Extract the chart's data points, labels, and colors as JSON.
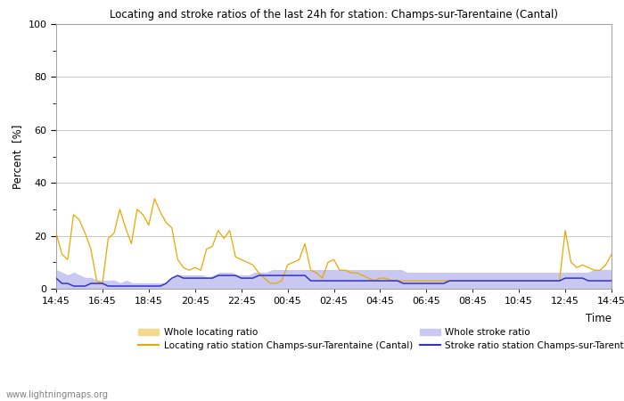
{
  "title": "Locating and stroke ratios of the last 24h for station: Champs-sur-Tarentaine (Cantal)",
  "xlabel": "Time",
  "ylabel": "Percent  [%]",
  "ylim": [
    0,
    100
  ],
  "yticks": [
    0,
    20,
    40,
    60,
    80,
    100
  ],
  "xtick_labels": [
    "14:45",
    "16:45",
    "18:45",
    "20:45",
    "22:45",
    "00:45",
    "02:45",
    "04:45",
    "06:45",
    "08:45",
    "10:45",
    "12:45",
    "14:45"
  ],
  "watermark": "www.lightningmaps.org",
  "whole_locating_color": "#f5d78e",
  "whole_stroke_color": "#c8c8f0",
  "locating_line_color": "#e8a800",
  "stroke_line_color": "#3333cc",
  "whole_locating": [
    2,
    1.5,
    1,
    1,
    1,
    1,
    1,
    1,
    2,
    1,
    1,
    1,
    1,
    1,
    1,
    1,
    1,
    1,
    1,
    1,
    1,
    1,
    1,
    1,
    1,
    1,
    1,
    1,
    1,
    1,
    1,
    1,
    1,
    1,
    1,
    1,
    1,
    1,
    1,
    1,
    1,
    1,
    1,
    1,
    1,
    1,
    1,
    1,
    1,
    1,
    1,
    1,
    1,
    1,
    1,
    1,
    1,
    1,
    1,
    1,
    1,
    1,
    1,
    1,
    1,
    1,
    1,
    1,
    1,
    1,
    1,
    1,
    1,
    1,
    1,
    1,
    1,
    1,
    1,
    1,
    1,
    1,
    1,
    1,
    1,
    1,
    1,
    1,
    1,
    1,
    1,
    1,
    1,
    1,
    1,
    1
  ],
  "whole_stroke": [
    7,
    6,
    5,
    6,
    5,
    4,
    4,
    3,
    3,
    3,
    3,
    2,
    3,
    2,
    2,
    2,
    2,
    2,
    2,
    2,
    4,
    5,
    5,
    5,
    5,
    5,
    4,
    5,
    6,
    6,
    6,
    5,
    5,
    5,
    6,
    6,
    6,
    7,
    7,
    7,
    7,
    7,
    7,
    7,
    7,
    7,
    7,
    7,
    7,
    7,
    7,
    7,
    7,
    7,
    7,
    7,
    7,
    7,
    7,
    7,
    6,
    6,
    6,
    6,
    6,
    6,
    6,
    6,
    6,
    6,
    6,
    6,
    6,
    6,
    6,
    6,
    6,
    6,
    6,
    6,
    6,
    6,
    6,
    6,
    6,
    6,
    6,
    6,
    6,
    6,
    6,
    6,
    7,
    7,
    7,
    7
  ],
  "locating_ratio": [
    21,
    13,
    11,
    28,
    26,
    21,
    15,
    3,
    2,
    19,
    21,
    30,
    23,
    17,
    30,
    28,
    24,
    34,
    29,
    25,
    23,
    11,
    8,
    7,
    8,
    7,
    15,
    16,
    22,
    19,
    22,
    12,
    11,
    10,
    9,
    6,
    4,
    2,
    2,
    3,
    9,
    10,
    11,
    17,
    7,
    6,
    4,
    10,
    11,
    7,
    7,
    6,
    6,
    5,
    4,
    3,
    4,
    4,
    3,
    3,
    3,
    3,
    3,
    3,
    3,
    3,
    3,
    3,
    3,
    3,
    3,
    3,
    3,
    3,
    3,
    3,
    3,
    3,
    3,
    3,
    3,
    3,
    3,
    3,
    3,
    3,
    3,
    3,
    22,
    10,
    8,
    9,
    8,
    7,
    7,
    9,
    13
  ],
  "stroke_ratio": [
    4,
    2,
    2,
    1,
    1,
    1,
    2,
    2,
    2,
    1,
    1,
    1,
    1,
    1,
    1,
    1,
    1,
    1,
    1,
    2,
    4,
    5,
    4,
    4,
    4,
    4,
    4,
    4,
    5,
    5,
    5,
    5,
    4,
    4,
    4,
    5,
    5,
    5,
    5,
    5,
    5,
    5,
    5,
    5,
    3,
    3,
    3,
    3,
    3,
    3,
    3,
    3,
    3,
    3,
    3,
    3,
    3,
    3,
    3,
    3,
    2,
    2,
    2,
    2,
    2,
    2,
    2,
    2,
    3,
    3,
    3,
    3,
    3,
    3,
    3,
    3,
    3,
    3,
    3,
    3,
    3,
    3,
    3,
    3,
    3,
    3,
    3,
    3,
    4,
    4,
    4,
    4,
    3,
    3,
    3,
    3,
    3
  ],
  "figsize": [
    7.0,
    4.5
  ],
  "dpi": 100
}
